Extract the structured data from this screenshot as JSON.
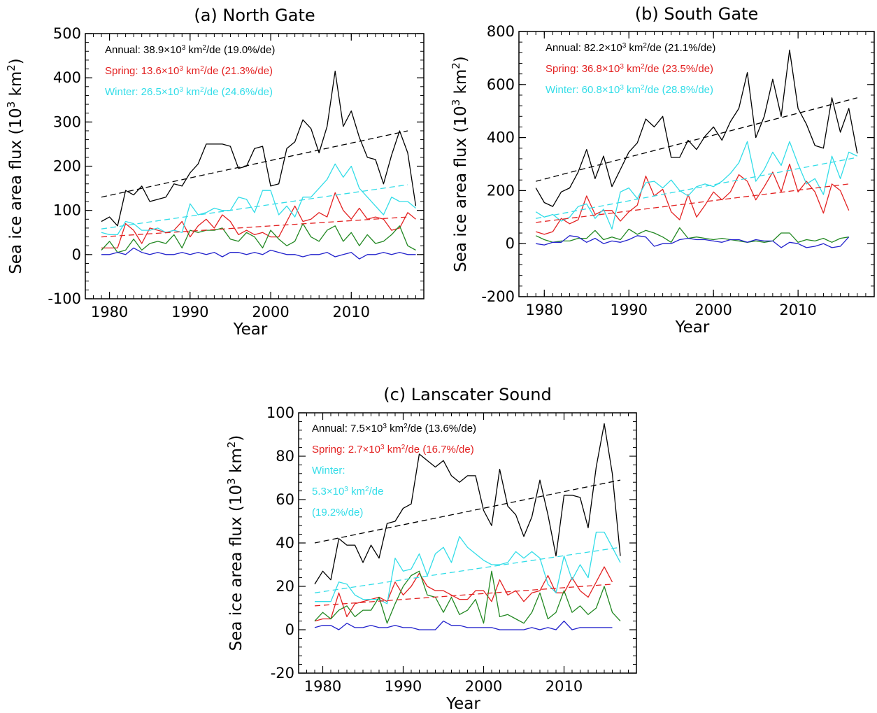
{
  "figure": {
    "colors": {
      "annual": "#000000",
      "spring": "#e32222",
      "winter": "#33dde8",
      "green": "#228822",
      "blue": "#2222cc"
    }
  },
  "chart_data": [
    {
      "id": "a",
      "type": "line",
      "title": "(a) North Gate",
      "xlabel": "Year",
      "ylabel_main": "Sea ice area flux (10",
      "ylabel_exp": "3",
      "ylabel_unit": " km",
      "ylabel_exp2": "2",
      "ylabel_close": ")",
      "xlim": [
        1977,
        2019
      ],
      "ylim": [
        -100,
        500
      ],
      "xticks": [
        1980,
        1990,
        2000,
        2010
      ],
      "yticks": [
        -100,
        0,
        100,
        200,
        300,
        400,
        500
      ],
      "x_start": 1979,
      "annotations": [
        {
          "pre": "Annual: 38.9×10",
          "sup": "3",
          "mid": " km",
          "sup2": "2",
          "post": "/de (19.0%/de)",
          "color": "#000000"
        },
        {
          "pre": "Spring: 13.6×10",
          "sup": "3",
          "mid": " km",
          "sup2": "2",
          "post": "/de (21.3%/de)",
          "color": "#e32222"
        },
        {
          "pre": "Winter: 26.5×10",
          "sup": "3",
          "mid": " km",
          "sup2": "2",
          "post": "/de (24.6%/de)",
          "color": "#33dde8"
        }
      ],
      "series": [
        {
          "color": "#000000",
          "values": [
            75,
            85,
            65,
            145,
            135,
            155,
            120,
            125,
            130,
            160,
            155,
            185,
            205,
            250,
            250,
            250,
            245,
            195,
            200,
            240,
            245,
            155,
            160,
            240,
            255,
            305,
            285,
            230,
            290,
            415,
            290,
            325,
            265,
            220,
            215,
            160,
            225,
            280,
            230,
            110
          ]
        },
        {
          "color": "#e32222",
          "values": [
            15,
            15,
            15,
            70,
            55,
            25,
            60,
            55,
            50,
            55,
            75,
            40,
            65,
            80,
            60,
            90,
            75,
            45,
            55,
            45,
            50,
            40,
            40,
            75,
            110,
            75,
            80,
            95,
            85,
            140,
            100,
            80,
            105,
            80,
            85,
            80,
            55,
            60,
            95,
            80
          ]
        },
        {
          "color": "#33dde8",
          "values": [
            50,
            45,
            45,
            75,
            70,
            55,
            55,
            60,
            50,
            55,
            50,
            115,
            90,
            95,
            105,
            100,
            100,
            130,
            125,
            95,
            145,
            145,
            90,
            110,
            85,
            130,
            130,
            150,
            170,
            205,
            175,
            200,
            150,
            130,
            110,
            90,
            130,
            120,
            120,
            105
          ]
        },
        {
          "color": "#228822",
          "values": [
            10,
            30,
            5,
            10,
            35,
            10,
            25,
            30,
            25,
            45,
            15,
            55,
            50,
            55,
            55,
            60,
            35,
            30,
            50,
            40,
            15,
            55,
            35,
            20,
            30,
            70,
            40,
            30,
            55,
            65,
            30,
            50,
            20,
            45,
            25,
            30,
            45,
            65,
            20,
            10
          ]
        },
        {
          "color": "#2222cc",
          "values": [
            0,
            0,
            5,
            0,
            15,
            5,
            0,
            5,
            0,
            0,
            5,
            0,
            5,
            0,
            5,
            -5,
            5,
            5,
            0,
            5,
            0,
            10,
            5,
            0,
            0,
            -5,
            0,
            0,
            5,
            -5,
            0,
            5,
            -10,
            0,
            0,
            5,
            0,
            5,
            0,
            0
          ]
        },
        {
          "color": "#000000",
          "dashed": true,
          "line": [
            [
              1979,
              130
            ],
            [
              2017,
              280
            ]
          ]
        },
        {
          "color": "#e32222",
          "dashed": true,
          "line": [
            [
              1979,
              40
            ],
            [
              2017,
              85
            ]
          ]
        },
        {
          "color": "#33dde8",
          "dashed": true,
          "line": [
            [
              1979,
              58
            ],
            [
              2017,
              158
            ]
          ]
        }
      ]
    },
    {
      "id": "b",
      "type": "line",
      "title": "(b) South Gate",
      "xlabel": "Year",
      "ylabel_main": "Sea ice area flux (10",
      "ylabel_exp": "3",
      "ylabel_unit": " km",
      "ylabel_exp2": "2",
      "ylabel_close": ")",
      "xlim": [
        1977,
        2019
      ],
      "ylim": [
        -200,
        800
      ],
      "xticks": [
        1980,
        1990,
        2000,
        2010
      ],
      "yticks": [
        -200,
        0,
        200,
        400,
        600,
        800
      ],
      "x_start": 1979,
      "annotations": [
        {
          "pre": "Annual: 82.2×10",
          "sup": "3",
          "mid": " km",
          "sup2": "2",
          "post": "/de (21.1%/de)",
          "color": "#000000"
        },
        {
          "pre": "Spring: 36.8×10",
          "sup": "3",
          "mid": " km",
          "sup2": "2",
          "post": "/de (23.5%/de)",
          "color": "#e32222"
        },
        {
          "pre": "Winter: 60.8×10",
          "sup": "3",
          "mid": " km",
          "sup2": "2",
          "post": "/de (28.8%/de)",
          "color": "#33dde8"
        }
      ],
      "series": [
        {
          "color": "#000000",
          "values": [
            210,
            155,
            140,
            195,
            210,
            270,
            355,
            245,
            330,
            215,
            280,
            345,
            380,
            470,
            440,
            480,
            325,
            325,
            390,
            355,
            405,
            440,
            390,
            460,
            510,
            645,
            400,
            480,
            620,
            480,
            730,
            510,
            450,
            370,
            360,
            550,
            420,
            510,
            340
          ]
        },
        {
          "color": "#e32222",
          "values": [
            45,
            35,
            45,
            95,
            75,
            90,
            180,
            110,
            125,
            125,
            85,
            120,
            145,
            255,
            180,
            205,
            120,
            90,
            185,
            100,
            145,
            195,
            165,
            195,
            260,
            235,
            165,
            215,
            270,
            195,
            300,
            195,
            235,
            195,
            115,
            225,
            200,
            125
          ]
        },
        {
          "color": "#33dde8",
          "values": [
            120,
            100,
            110,
            85,
            100,
            140,
            150,
            95,
            130,
            55,
            195,
            210,
            170,
            230,
            235,
            210,
            240,
            200,
            180,
            215,
            225,
            215,
            235,
            265,
            305,
            385,
            235,
            280,
            345,
            295,
            385,
            300,
            225,
            245,
            185,
            330,
            245,
            345,
            330
          ]
        },
        {
          "color": "#228822",
          "values": [
            30,
            15,
            5,
            10,
            10,
            20,
            20,
            50,
            15,
            25,
            15,
            55,
            35,
            50,
            40,
            25,
            5,
            60,
            20,
            25,
            20,
            15,
            20,
            15,
            10,
            5,
            10,
            5,
            10,
            40,
            40,
            5,
            15,
            10,
            20,
            5,
            20,
            25
          ]
        },
        {
          "color": "#2222cc",
          "values": [
            0,
            -5,
            5,
            5,
            30,
            25,
            5,
            20,
            0,
            10,
            5,
            15,
            30,
            25,
            -10,
            0,
            0,
            15,
            20,
            15,
            15,
            10,
            5,
            15,
            15,
            5,
            15,
            10,
            10,
            -15,
            5,
            0,
            -15,
            -10,
            0,
            -15,
            -10,
            25
          ]
        },
        {
          "color": "#000000",
          "dashed": true,
          "line": [
            [
              1979,
              235
            ],
            [
              2017,
              550
            ]
          ]
        },
        {
          "color": "#e32222",
          "dashed": true,
          "line": [
            [
              1979,
              80
            ],
            [
              2016,
              225
            ]
          ]
        },
        {
          "color": "#33dde8",
          "dashed": true,
          "line": [
            [
              1979,
              95
            ],
            [
              2017,
              325
            ]
          ]
        }
      ]
    },
    {
      "id": "c",
      "type": "line",
      "title": "(c) Lanscater Sound",
      "xlabel": "Year",
      "ylabel_main": "Sea ice area flux (10",
      "ylabel_exp": "3",
      "ylabel_unit": " km",
      "ylabel_exp2": "2",
      "ylabel_close": ")",
      "xlim": [
        1977,
        2019
      ],
      "ylim": [
        -20,
        100
      ],
      "xticks": [
        1980,
        1990,
        2000,
        2010
      ],
      "yticks": [
        -20,
        0,
        20,
        40,
        60,
        80,
        100
      ],
      "x_start": 1979,
      "annotations": [
        {
          "pre": "Annual: 7.5×10",
          "sup": "3",
          "mid": " km",
          "sup2": "2",
          "post": "/de (13.6%/de)",
          "color": "#000000"
        },
        {
          "pre": "Spring: 2.7×10",
          "sup": "3",
          "mid": " km",
          "sup2": "2",
          "post": "/de (16.7%/de)",
          "color": "#e32222"
        },
        {
          "pre": "Winter:",
          "sup": "",
          "mid": "",
          "sup2": "",
          "post": "",
          "color": "#33dde8"
        },
        {
          "pre": "5.3×10",
          "sup": "3",
          "mid": " km",
          "sup2": "2",
          "post": "/de",
          "color": "#33dde8"
        },
        {
          "pre": "(19.2%/de)",
          "sup": "",
          "mid": "",
          "sup2": "",
          "post": "",
          "color": "#33dde8"
        }
      ],
      "series": [
        {
          "color": "#000000",
          "values": [
            21,
            27,
            23,
            42,
            39,
            39,
            31,
            39,
            33,
            49,
            50,
            56,
            58,
            81,
            78,
            75,
            78,
            71,
            68,
            71,
            71,
            55,
            48,
            74,
            57,
            53,
            43,
            52,
            69,
            53,
            34,
            62,
            62,
            61,
            47,
            75,
            95,
            72,
            34
          ]
        },
        {
          "color": "#e32222",
          "values": [
            4,
            5,
            5,
            17,
            6,
            12,
            13,
            14,
            15,
            13,
            22,
            16,
            20,
            26,
            20,
            18,
            18,
            16,
            14,
            14,
            18,
            18,
            13,
            23,
            16,
            18,
            13,
            17,
            18,
            25,
            17,
            17,
            24,
            18,
            15,
            22,
            29,
            22
          ]
        },
        {
          "color": "#33dde8",
          "values": [
            13,
            13,
            13,
            22,
            21,
            16,
            14,
            14,
            14,
            12,
            33,
            27,
            28,
            35,
            25,
            35,
            38,
            31,
            43,
            38,
            35,
            32,
            30,
            30,
            31,
            36,
            33,
            36,
            33,
            21,
            17,
            34,
            23,
            30,
            24,
            45,
            45,
            38,
            31
          ]
        },
        {
          "color": "#228822",
          "values": [
            4,
            8,
            5,
            9,
            11,
            6,
            9,
            9,
            15,
            3,
            12,
            20,
            25,
            27,
            16,
            15,
            8,
            15,
            7,
            9,
            14,
            3,
            27,
            6,
            7,
            5,
            3,
            8,
            17,
            5,
            8,
            18,
            8,
            11,
            7,
            10,
            20,
            8,
            4
          ]
        },
        {
          "color": "#2222cc",
          "values": [
            1,
            2,
            2,
            0,
            3,
            1,
            1,
            2,
            1,
            1,
            2,
            1,
            1,
            0,
            0,
            0,
            4,
            2,
            2,
            1,
            1,
            1,
            1,
            0,
            0,
            0,
            0,
            1,
            0,
            1,
            0,
            4,
            0,
            1,
            1,
            1,
            1,
            1
          ]
        },
        {
          "color": "#000000",
          "dashed": true,
          "line": [
            [
              1979,
              40
            ],
            [
              2017,
              69
            ]
          ]
        },
        {
          "color": "#e32222",
          "dashed": true,
          "line": [
            [
              1979,
              11
            ],
            [
              2016,
              21
            ]
          ]
        },
        {
          "color": "#33dde8",
          "dashed": true,
          "line": [
            [
              1979,
              17
            ],
            [
              2017,
              38
            ]
          ]
        }
      ]
    }
  ]
}
